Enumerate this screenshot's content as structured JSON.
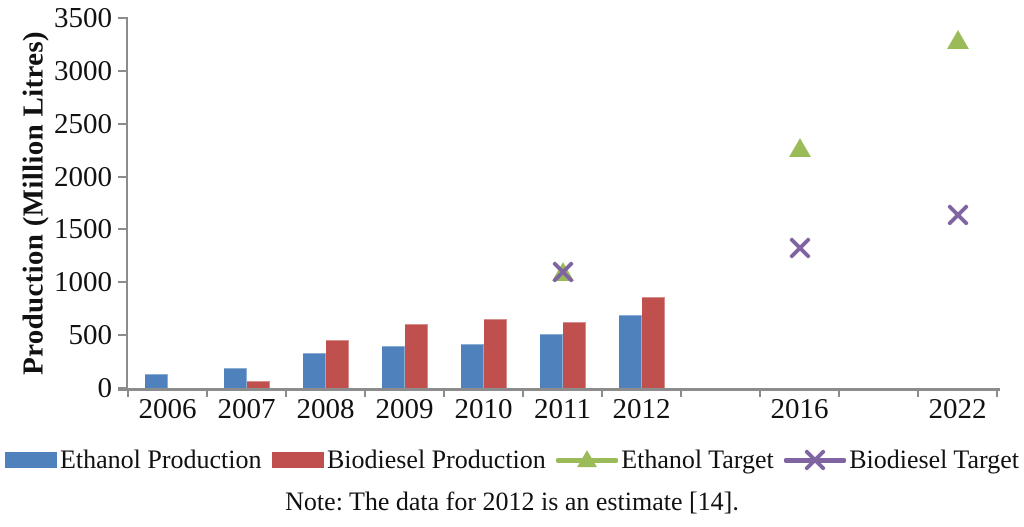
{
  "figure": {
    "note": "Note: The data for 2012 is an estimate [14]."
  },
  "chart_data": {
    "type": "bar",
    "title": "",
    "xlabel": "",
    "ylabel": "Production (Million Litres)",
    "ylim": [
      0,
      3500
    ],
    "ytick_step": 500,
    "grid": false,
    "legend_position": "bottom",
    "axis_color": "#8c8c8c",
    "categories": [
      "2006",
      "2007",
      "2008",
      "2009",
      "2010",
      "2011",
      "2012",
      "",
      "2016",
      "",
      "2022"
    ],
    "series": [
      {
        "name": "Ethanol Production",
        "type": "bar",
        "color": "#4F81BD",
        "values": [
          130,
          190,
          330,
          400,
          420,
          510,
          690,
          null,
          null,
          null,
          null
        ]
      },
      {
        "name": "Biodiesel Production",
        "type": "bar",
        "color": "#C0504D",
        "values": [
          null,
          65,
          450,
          610,
          655,
          625,
          860,
          null,
          null,
          null,
          null
        ]
      },
      {
        "name": "Ethanol Target",
        "type": "scatter",
        "marker": "triangle",
        "color": "#9BBB59",
        "values": [
          null,
          null,
          null,
          null,
          null,
          1100,
          null,
          null,
          2270,
          null,
          3290
        ]
      },
      {
        "name": "Biodiesel Target",
        "type": "scatter",
        "marker": "x",
        "color": "#8064A2",
        "values": [
          null,
          null,
          null,
          null,
          null,
          1100,
          null,
          null,
          1320,
          null,
          1640
        ]
      }
    ]
  }
}
